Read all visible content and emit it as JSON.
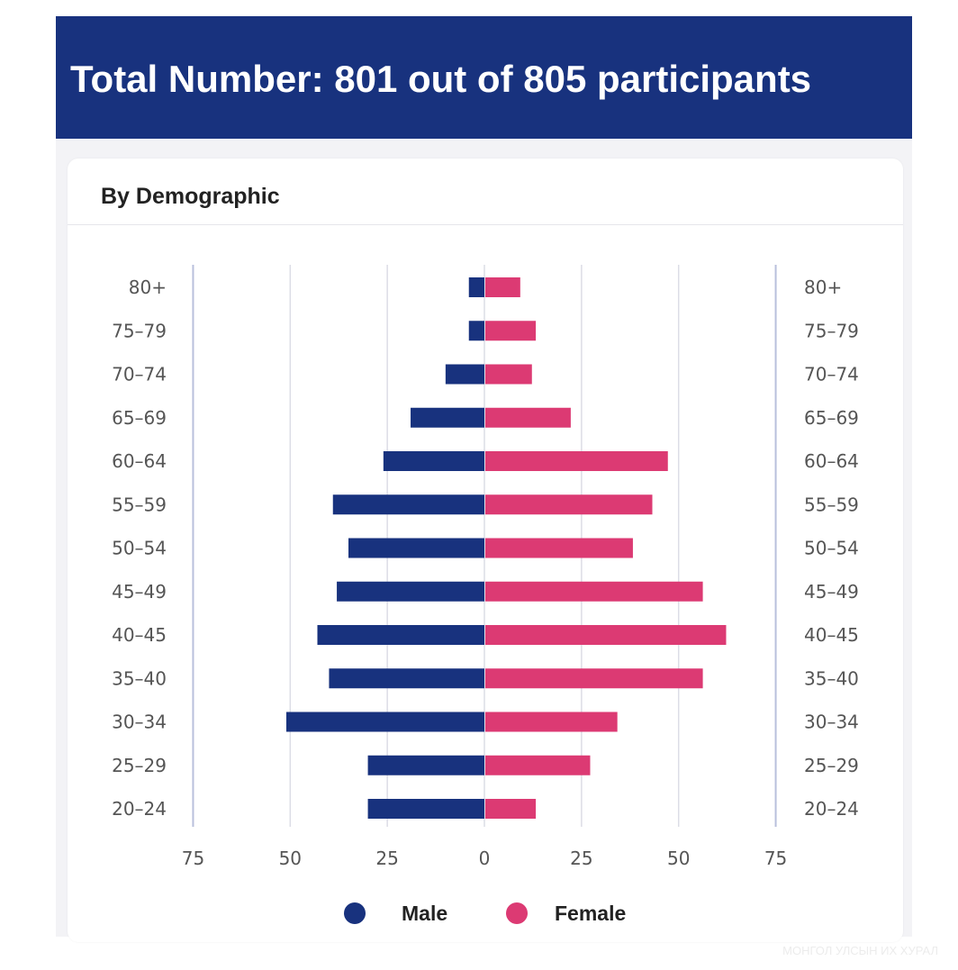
{
  "banner": {
    "title": "Total Number: 801 out of 805 participants"
  },
  "card": {
    "title": "By Demographic"
  },
  "watermark": "МОНГОЛ УЛСЫН ИХ ХУРАЛ",
  "colors": {
    "banner": "#18327e",
    "male": "#18327e",
    "female": "#dc3a73",
    "grid": "#dcdde6",
    "axis_edge": "#b9c0dc",
    "tick_text": "#555555"
  },
  "chart_data": {
    "type": "bar",
    "orientation": "horizontal-butterfly",
    "categories": [
      "80+",
      "75-79",
      "70-74",
      "65-69",
      "60-64",
      "55-59",
      "50-54",
      "45-49",
      "40-45",
      "35-40",
      "30-34",
      "25-29",
      "20-24"
    ],
    "series": [
      {
        "name": "Male",
        "side": "left",
        "values": [
          4,
          4,
          10,
          19,
          26,
          39,
          35,
          38,
          43,
          40,
          51,
          30,
          30
        ]
      },
      {
        "name": "Female",
        "side": "right",
        "values": [
          9,
          13,
          12,
          22,
          47,
          43,
          38,
          56,
          62,
          56,
          34,
          27,
          13
        ]
      }
    ],
    "x_ticks": [
      "75",
      "50",
      "25",
      "0",
      "25",
      "50",
      "75"
    ],
    "xlim": [
      -75,
      75
    ],
    "title": "",
    "xlabel": "",
    "ylabel": "",
    "grid": true,
    "legend_position": "bottom-center",
    "category_labels_both_sides": true
  }
}
